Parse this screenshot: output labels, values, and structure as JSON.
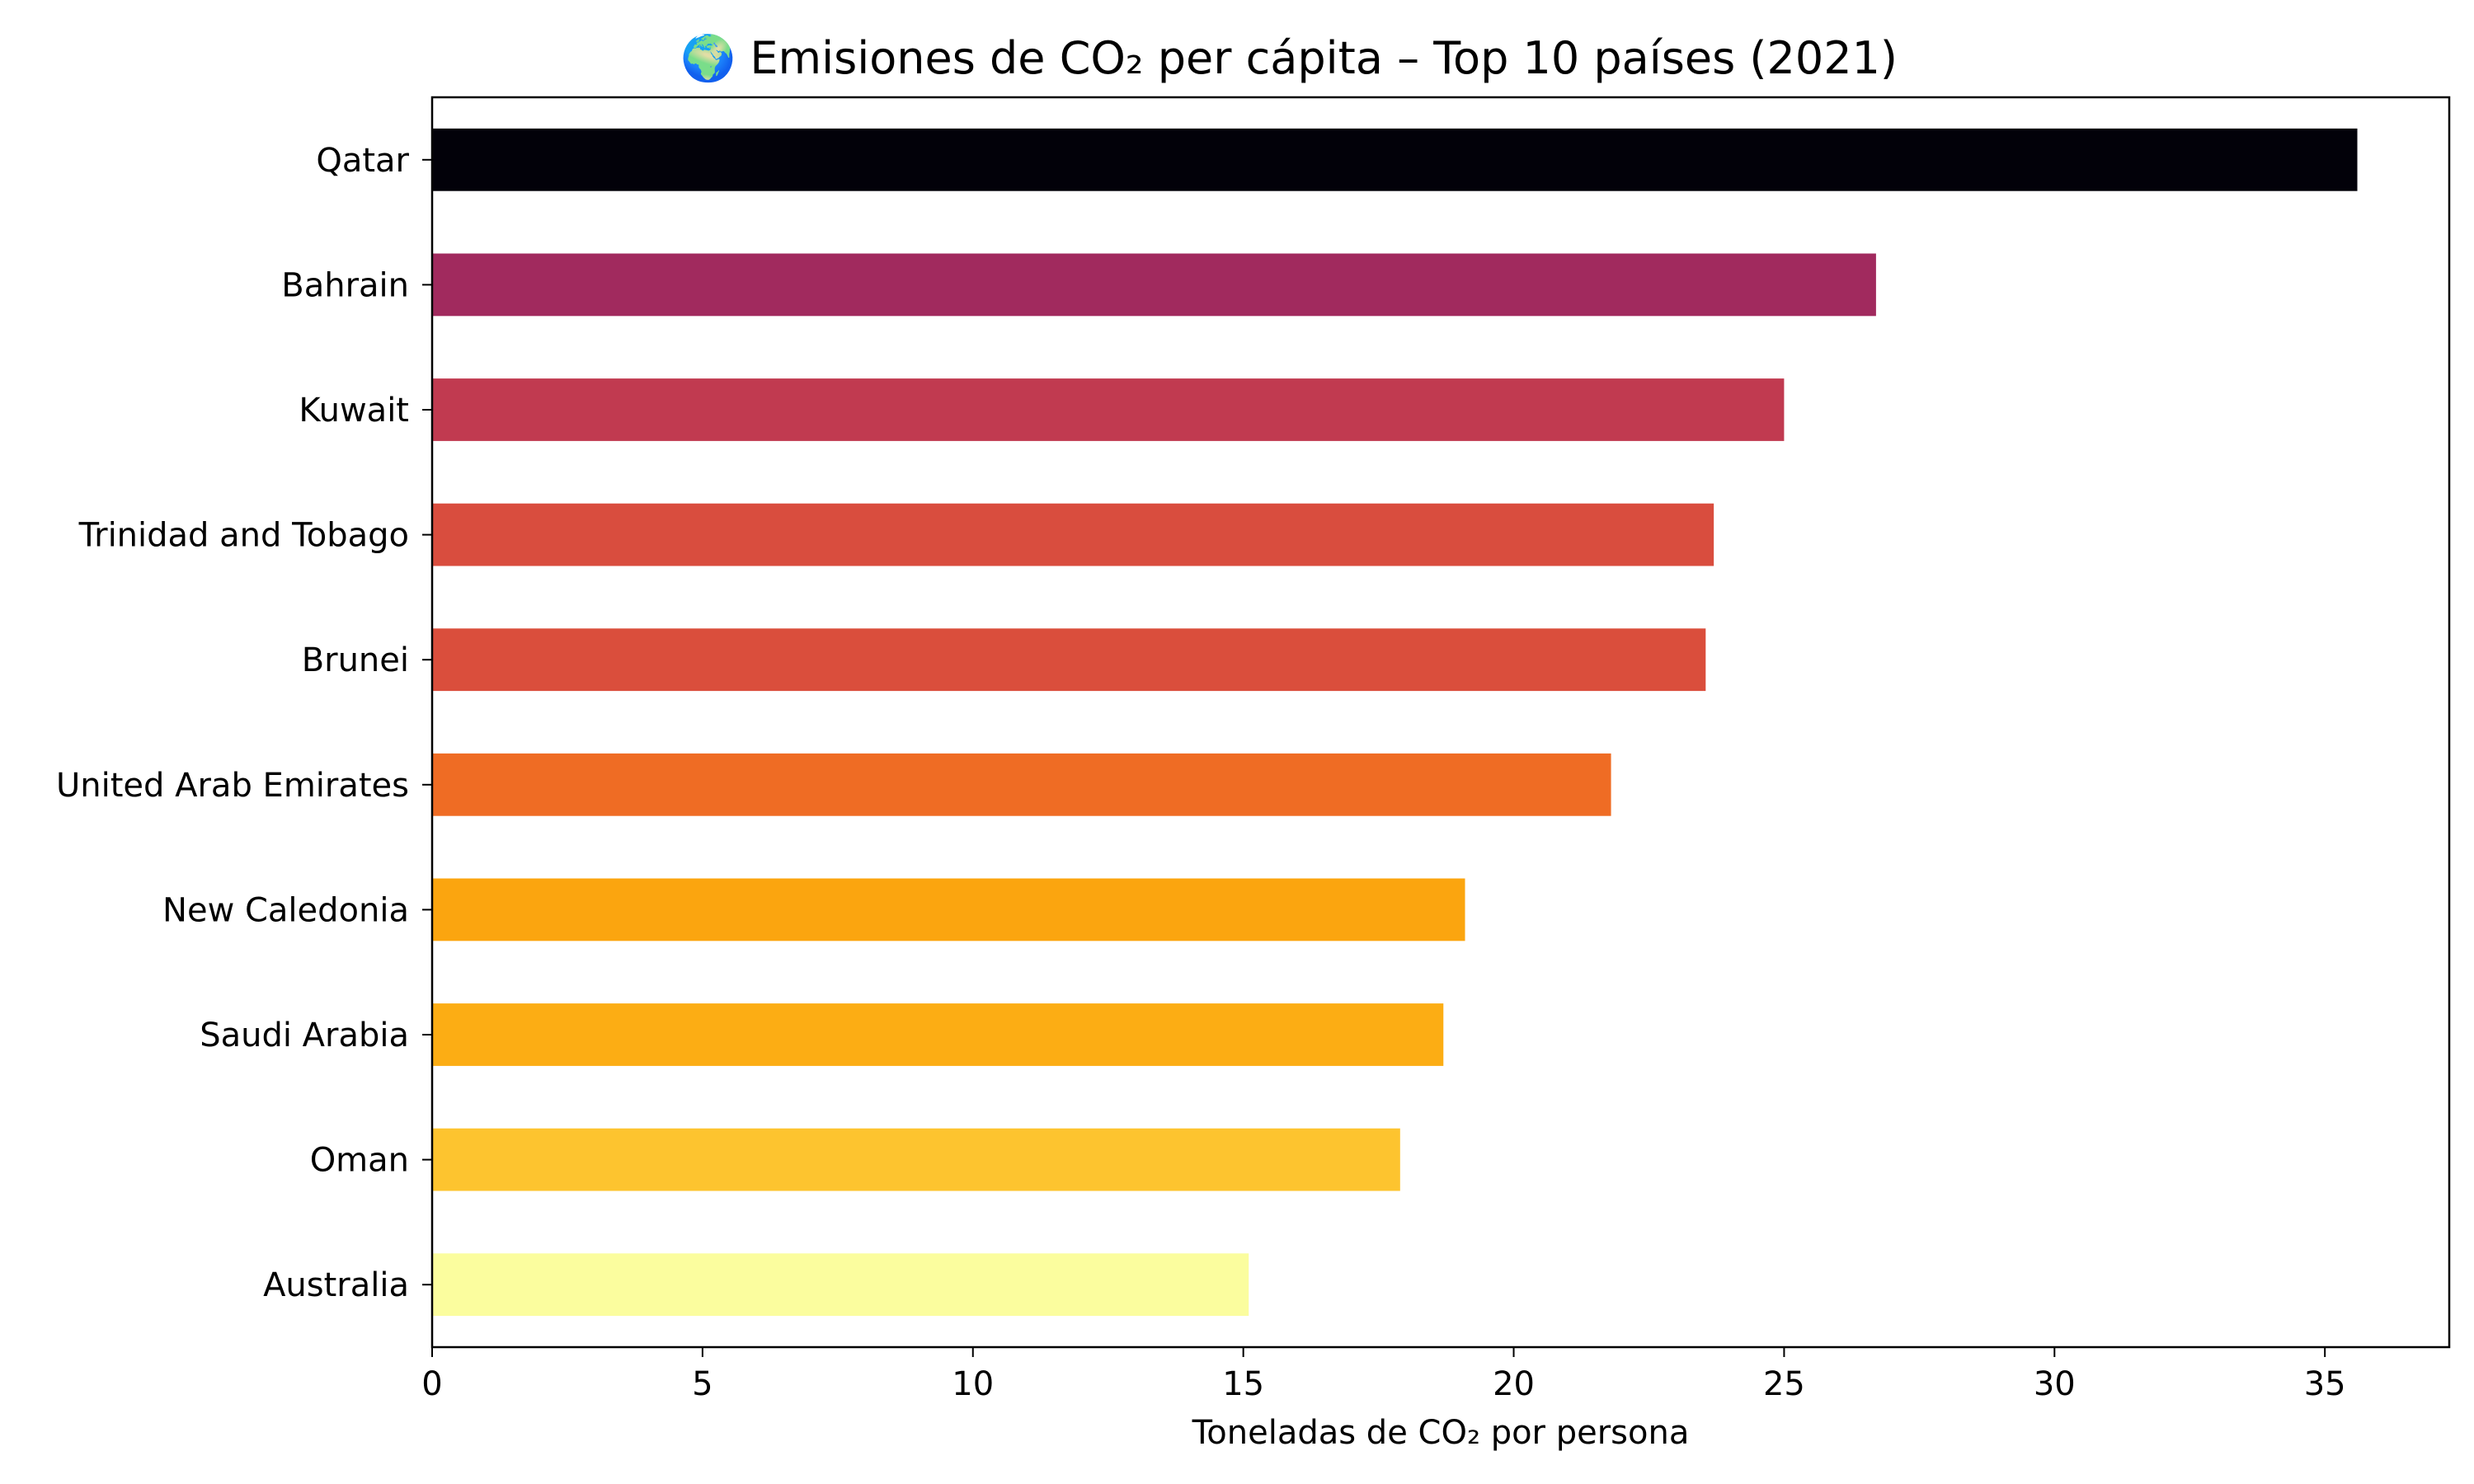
{
  "chart_data": {
    "type": "bar",
    "orientation": "horizontal",
    "title": "🌍 Emisiones de CO₂ per cápita – Top 10 países (2021)",
    "xlabel": "Toneladas de CO₂ por persona",
    "ylabel": "",
    "xlim": [
      0,
      37.3
    ],
    "xticks": [
      0,
      5,
      10,
      15,
      20,
      25,
      30,
      35
    ],
    "grid": false,
    "categories": [
      "Qatar",
      "Bahrain",
      "Kuwait",
      "Trinidad and Tobago",
      "Brunei",
      "United Arab Emirates",
      "New Caledonia",
      "Saudi Arabia",
      "Oman",
      "Australia"
    ],
    "values": [
      35.6,
      26.7,
      25.0,
      23.7,
      23.55,
      21.8,
      19.1,
      18.7,
      17.9,
      15.1
    ],
    "colors": [
      "#020109",
      "#a12a5e",
      "#c13a50",
      "#d94d3e",
      "#da4e3c",
      "#ef6c24",
      "#fba50f",
      "#fcad14",
      "#fdc42f",
      "#fbfd9e"
    ]
  }
}
